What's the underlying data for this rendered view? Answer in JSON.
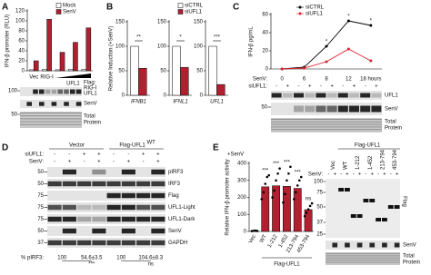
{
  "panel_letters": [
    "A",
    "B",
    "C",
    "D",
    "E"
  ],
  "chart_data": [
    {
      "type": "bar",
      "ylabel": "IFN-β promoter (RLU)",
      "categories": [
        "Vec",
        "RIG-I",
        null,
        null,
        null
      ],
      "group_label": "UFL1",
      "series": [
        {
          "name": "Mock",
          "color": "#ffffff",
          "values": [
            2,
            3,
            2,
            3,
            3
          ]
        },
        {
          "name": "SenV",
          "color": "#b22030",
          "values": [
            20,
            103,
            37,
            57,
            86
          ]
        }
      ],
      "ylim": [
        0,
        120
      ],
      "yticks": [
        0,
        20,
        40,
        60,
        80,
        100,
        120
      ]
    },
    {
      "type": "bar",
      "ylabel": "Relative Induction (+SenV)",
      "categories": [
        "IFNB1"
      ],
      "series": [
        {
          "color": "#ffffff",
          "values": [
            100
          ]
        },
        {
          "color": "#b22030",
          "values": [
            55
          ]
        }
      ],
      "annotation": "**",
      "ylim": [
        0,
        150
      ],
      "yticks": [
        0,
        50,
        100,
        150
      ]
    },
    {
      "type": "bar",
      "categories": [
        "IFNL1"
      ],
      "series": [
        {
          "name": "siCTRL",
          "color": "#ffffff",
          "values": [
            100
          ]
        },
        {
          "name": "siUFL1",
          "color": "#b22030",
          "values": [
            57
          ]
        }
      ],
      "annotation": "*",
      "ylim": [
        0,
        150
      ],
      "yticks": [
        0,
        50,
        100,
        150
      ]
    },
    {
      "type": "bar",
      "categories": [
        "UFL1"
      ],
      "series": [
        {
          "color": "#ffffff",
          "values": [
            100
          ]
        },
        {
          "color": "#b22030",
          "values": [
            22
          ]
        }
      ],
      "annotation": "***",
      "ylim": [
        0,
        150
      ],
      "yticks": [
        0,
        50,
        100,
        150
      ]
    },
    {
      "type": "line",
      "ylabel": "IFN-β pg/mL",
      "xlabel": "SenV:",
      "categories": [
        "0",
        "6",
        "8",
        "12",
        "18 hours"
      ],
      "series": [
        {
          "name": "siCTRL",
          "color": "#000000",
          "values": [
            0,
            2,
            25,
            53,
            48
          ]
        },
        {
          "name": "siUFL1",
          "color": "#d9232e",
          "values": [
            0,
            1,
            8,
            22,
            9
          ]
        }
      ],
      "significance": [
        null,
        null,
        "*",
        "*",
        "*"
      ],
      "ylim": [
        0,
        60
      ],
      "yticks": [
        0,
        20,
        40,
        60
      ]
    },
    {
      "type": "bar",
      "ylabel": "Relative IFN-β promoter activity",
      "condition_label": "+SenV",
      "categories": [
        "Vec",
        "WT",
        "1-212",
        "1-452",
        "213-794",
        "453-794"
      ],
      "group_label": "Flag-UFL1",
      "color": "#b22030",
      "values": [
        4,
        262,
        268,
        265,
        253,
        128
      ],
      "points": [
        [
          2,
          4,
          5,
          3
        ],
        [
          190,
          230,
          280,
          320,
          330
        ],
        [
          200,
          240,
          300,
          340,
          370
        ],
        [
          170,
          220,
          300,
          340,
          380
        ],
        [
          190,
          230,
          270,
          300,
          320
        ],
        [
          90,
          110,
          130,
          150,
          165
        ]
      ],
      "significance": [
        null,
        "***",
        "***",
        "***",
        "***",
        "ns"
      ],
      "ylim": [
        0,
        400
      ],
      "yticks": [
        0,
        100,
        200,
        300,
        400
      ]
    }
  ],
  "blots": {
    "A": {
      "flag_label": "Flag:",
      "flag_items": [
        "RIG-I",
        "UFL1"
      ],
      "markers": [
        "100",
        "50"
      ],
      "labels": [
        "SenV"
      ],
      "total_protein": [
        "Total",
        "Protein"
      ]
    },
    "C": {
      "row_label": "siUFL1:",
      "row": [
        "-",
        "+",
        "-",
        "+",
        "-",
        "+",
        "-",
        "+",
        "-",
        "+"
      ],
      "markers": [
        "50"
      ],
      "labels": [
        "UFL1",
        "SenV"
      ],
      "total_protein": [
        "Total",
        "Protein"
      ]
    },
    "D": {
      "groups": [
        "Vector",
        "Flag-UFL1"
      ],
      "group_superscript": "WT",
      "rows": [
        {
          "label": "siUFL1:",
          "signs": [
            "-",
            "-",
            "+",
            "+",
            "-",
            "-",
            "+",
            "+"
          ]
        },
        {
          "label": "SenV:",
          "signs": [
            "-",
            "+",
            "-",
            "+",
            "-",
            "+",
            "-",
            "+"
          ]
        }
      ],
      "labels": [
        "pIRF3",
        "IRF3",
        "Flag",
        "UFL1-Light",
        "UFL1-Dark",
        "SenV",
        "GAPDH"
      ],
      "markers": [
        "50",
        "50",
        "75",
        "75",
        "75",
        "50",
        "37"
      ],
      "quant_label": "% pIRF3:",
      "quant": [
        "100",
        "54.6±3.5",
        "100",
        "104.6±8.3"
      ],
      "quant_sig": [
        "***",
        "ns"
      ]
    },
    "E": {
      "group_label": "Flag-UFL1",
      "row_label": "SenV:",
      "row": [
        "-",
        "+",
        "-",
        "+",
        "-",
        "+",
        "-",
        "+",
        "-",
        "+",
        "-",
        "+"
      ],
      "markers": [
        "100",
        "75",
        "50",
        "37",
        "25"
      ],
      "flag_label": "Flag",
      "labels": [
        "SenV"
      ],
      "total_protein": [
        "Total",
        "Protein"
      ]
    }
  }
}
